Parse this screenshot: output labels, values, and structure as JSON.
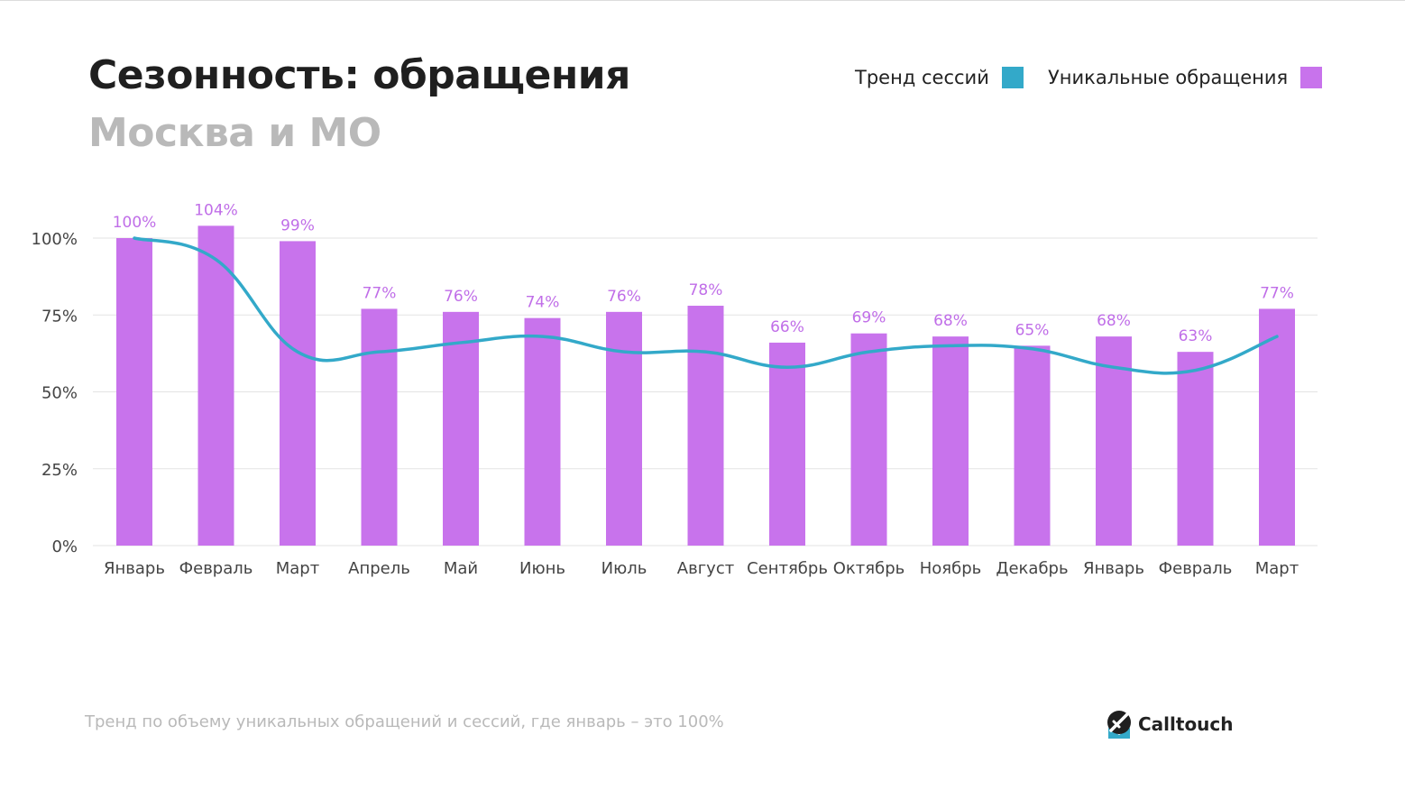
{
  "title": "Сезонность: обращения",
  "subtitle": "Москва и МО",
  "legend": {
    "trend_label": "Тренд сессий",
    "unique_label": "Уникальные обращения"
  },
  "colors": {
    "bar": "#c873ec",
    "line": "#33a9c9",
    "label": "#c06ee8",
    "grid": "#e3e3e3",
    "axis_text": "#444444"
  },
  "chart_data": {
    "type": "bar",
    "categories": [
      "Январь",
      "Февраль",
      "Март",
      "Апрель",
      "Май",
      "Июнь",
      "Июль",
      "Август",
      "Сентябрь",
      "Октябрь",
      "Ноябрь",
      "Декабрь",
      "Январь",
      "Февраль",
      "Март"
    ],
    "series": [
      {
        "name": "Уникальные обращения",
        "type": "bar",
        "values": [
          100,
          104,
          99,
          77,
          76,
          74,
          76,
          78,
          66,
          69,
          68,
          65,
          68,
          63,
          77
        ],
        "data_labels": [
          "100%",
          "104%",
          "99%",
          "77%",
          "76%",
          "74%",
          "76%",
          "78%",
          "66%",
          "69%",
          "68%",
          "65%",
          "68%",
          "63%",
          "77%"
        ]
      },
      {
        "name": "Тренд сессий",
        "type": "line",
        "values": [
          100,
          93,
          63,
          63,
          66,
          68,
          63,
          63,
          58,
          63,
          65,
          64,
          58,
          57,
          68
        ]
      }
    ],
    "yticks": [
      "0%",
      "25%",
      "50%",
      "75%",
      "100%"
    ],
    "ytick_values": [
      0,
      25,
      50,
      75,
      100
    ],
    "ylim": [
      0,
      100
    ],
    "grid": true,
    "legend_position": "top-right"
  },
  "footnote": "Тренд по объему уникальных обращений и сессий, где январь – это 100%",
  "brand": {
    "name": "Calltouch",
    "icon": "calltouch-logo-icon"
  }
}
